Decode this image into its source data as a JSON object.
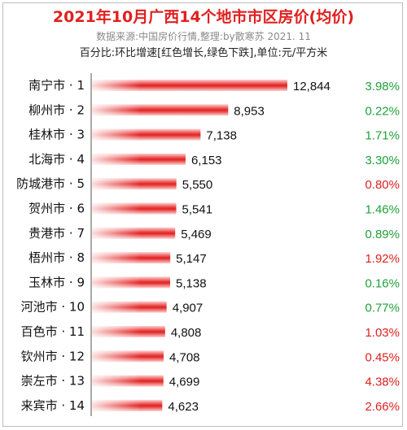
{
  "header": {
    "title": "2021年10月广西14个地市市区房价(均价)",
    "subtitle": "数据来源:中国房价行情,整理:by散寒苏  2021. 11",
    "note": "百分比:环比增速[红色增长,绿色下跌],单位:元/平方米"
  },
  "colors": {
    "title": "#e02020",
    "bar": "#e53030",
    "increase": "#e02020",
    "decrease": "#22a03a"
  },
  "chart_data": {
    "type": "bar",
    "orientation": "horizontal",
    "categories": [
      "南宁市 · 1",
      "柳州市 · 2",
      "桂林市 · 3",
      "北海市 · 4",
      "防城港市 · 5",
      "贺州市 · 6",
      "贵港市 · 7",
      "梧州市 · 8",
      "玉林市 · 9",
      "河池市 · 10",
      "百色市 · 11",
      "钦州市 · 12",
      "崇左市 · 13",
      "来宾市 · 14"
    ],
    "values": [
      12844,
      8953,
      7138,
      6153,
      5550,
      5541,
      5469,
      5147,
      5138,
      4907,
      4808,
      4708,
      4699,
      4623
    ],
    "value_labels": [
      "12,844",
      "8,953",
      "7,138",
      "6,153",
      "5,550",
      "5,541",
      "5,469",
      "5,147",
      "5,138",
      "4,907",
      "4,808",
      "4,708",
      "4,699",
      "4,623"
    ],
    "change_labels": [
      "3.98%",
      "0.22%",
      "1.71%",
      "3.30%",
      "0.80%",
      "1.46%",
      "0.89%",
      "1.92%",
      "0.16%",
      "0.77%",
      "1.03%",
      "0.45%",
      "4.38%",
      "2.66%"
    ],
    "change_direction": [
      "down",
      "down",
      "down",
      "down",
      "up",
      "down",
      "down",
      "up",
      "down",
      "down",
      "up",
      "up",
      "up",
      "up"
    ],
    "xlim": [
      0,
      12844
    ],
    "grid": false,
    "legend": "none"
  }
}
